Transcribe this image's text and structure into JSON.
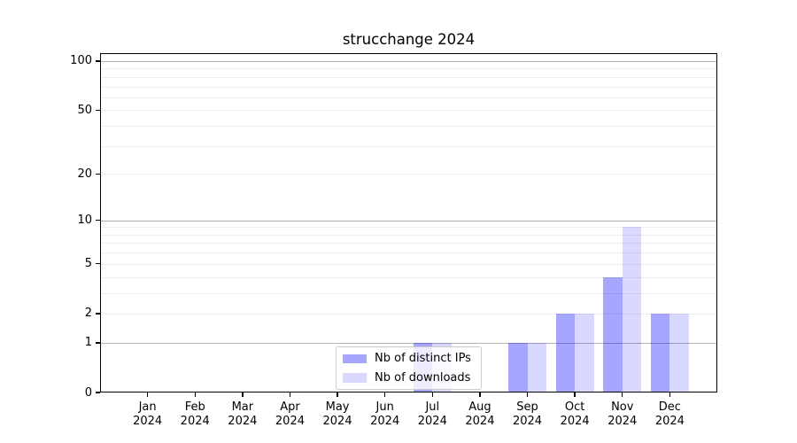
{
  "title": "strucchange 2024",
  "chart_data": {
    "type": "bar",
    "title": "strucchange 2024",
    "categories": [
      "Jan",
      "Feb",
      "Mar",
      "Apr",
      "May",
      "Jun",
      "Jul",
      "Aug",
      "Sep",
      "Oct",
      "Nov",
      "Dec"
    ],
    "year_label": "2024",
    "series": [
      {
        "name": "Nb of distinct IPs",
        "color": "rgba(0,0,255,0.35)",
        "values": [
          0,
          0,
          0,
          0,
          0,
          0,
          1,
          0,
          1,
          2,
          4,
          2
        ]
      },
      {
        "name": "Nb of downloads",
        "color": "rgba(0,0,255,0.15)",
        "values": [
          0,
          0,
          0,
          0,
          0,
          0,
          1,
          0,
          1,
          2,
          9,
          2
        ]
      }
    ],
    "xlabel": "",
    "ylabel": "",
    "yscale": "log1p",
    "ylim": [
      0,
      112
    ],
    "yticks": [
      0,
      1,
      2,
      5,
      10,
      20,
      50,
      100
    ],
    "ytick_labels": [
      "0",
      "1",
      "2",
      "5",
      "10",
      "20",
      "50",
      "100"
    ],
    "major_grid_values": [
      1,
      10,
      100
    ],
    "minor_grid_values": [
      2,
      3,
      4,
      5,
      6,
      7,
      8,
      9,
      20,
      30,
      40,
      50,
      60,
      70,
      80,
      90
    ],
    "grid_major_color": "#b2b2b2",
    "grid_minor_color": "#ededed",
    "legend_position": "lower center-left",
    "grid": "on"
  }
}
